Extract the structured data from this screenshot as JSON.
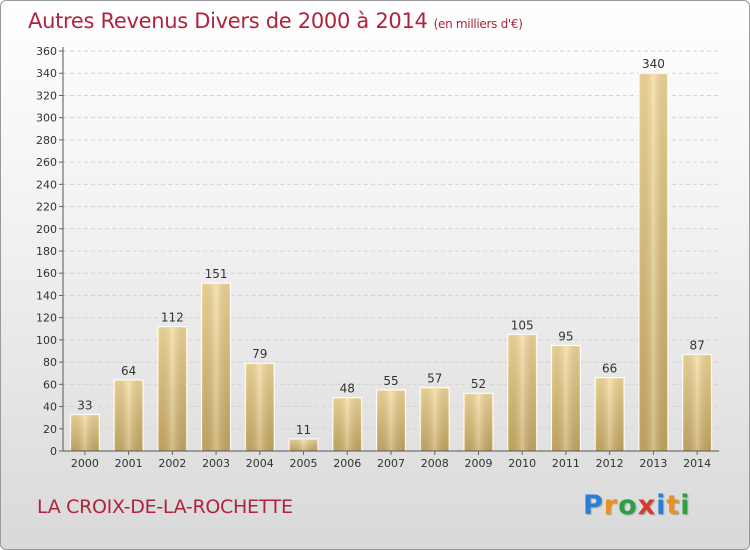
{
  "header": {
    "title": "Autres Revenus Divers de 2000 à 2014",
    "unit": "(en milliers d'€)"
  },
  "footer": {
    "commune": "LA CROIX-DE-LA-ROCHETTE",
    "logo": "Proxiti",
    "logo_colors": [
      "#2a7fd4",
      "#e8931f",
      "#2ea043",
      "#d63b2f",
      "#2a7fd4",
      "#e8931f",
      "#2ea043"
    ]
  },
  "chart_data": {
    "type": "bar",
    "title": "Autres Revenus Divers de 2000 à 2014",
    "xlabel": "",
    "ylabel": "",
    "categories": [
      "2000",
      "2001",
      "2002",
      "2003",
      "2004",
      "2005",
      "2006",
      "2007",
      "2008",
      "2009",
      "2010",
      "2011",
      "2012",
      "2013",
      "2014"
    ],
    "values": [
      33,
      64,
      112,
      151,
      79,
      11,
      48,
      55,
      57,
      52,
      105,
      95,
      66,
      340,
      87
    ],
    "ylim": [
      0,
      360
    ],
    "yticks": [
      0,
      20,
      40,
      60,
      80,
      100,
      120,
      140,
      160,
      180,
      200,
      220,
      240,
      260,
      280,
      300,
      320,
      340,
      360
    ],
    "grid": true,
    "legend": "none",
    "bar_color": "#e9cc86"
  }
}
